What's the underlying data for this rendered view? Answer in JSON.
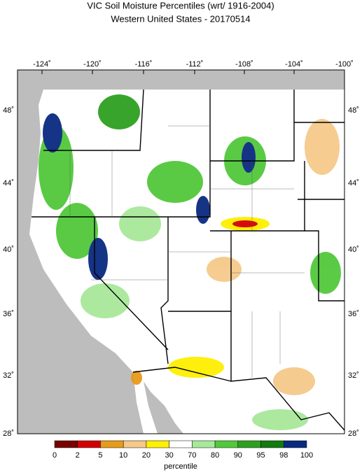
{
  "title": "VIC Soil Moisture Percentiles (wrt/ 1916-2004)",
  "subtitle": "Western United States - 20170514",
  "lon_labels": [
    "-124˚",
    "-120˚",
    "-116˚",
    "-112˚",
    "-108˚",
    "-104˚",
    "-100˚"
  ],
  "lat_labels": [
    "48˚",
    "44˚",
    "40˚",
    "36˚",
    "32˚",
    "28˚"
  ],
  "legend": {
    "colors": [
      "#7a0000",
      "#d40000",
      "#e89a1a",
      "#f5c98a",
      "#ffef00",
      "#ffffff",
      "#a8e89a",
      "#52c83c",
      "#2ea020",
      "#137a10",
      "#0a2a80"
    ],
    "labels": [
      "0",
      "2",
      "5",
      "10",
      "20",
      "30",
      "70",
      "80",
      "90",
      "95",
      "98",
      "100"
    ],
    "title": "percentile"
  }
}
